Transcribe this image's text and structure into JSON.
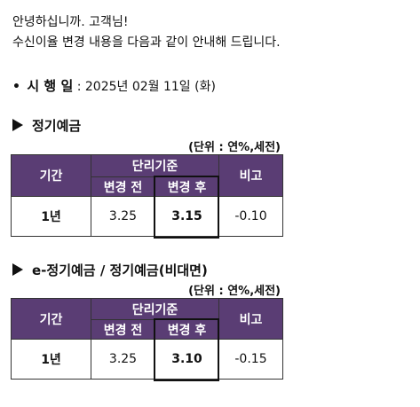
{
  "greeting": {
    "line1": "안녕하십니까. 고객님!",
    "line2": "수신이율 변경 내용을 다음과 같이 안내해 드립니다."
  },
  "effective": {
    "bullet": "•",
    "label": "시 행 일",
    "separator": " : ",
    "date": "2025년 02월 11일 (화)"
  },
  "sections": [
    {
      "title": "정기예금",
      "unit": "(단위 : 연%,세전)",
      "headers": {
        "period": "기간",
        "base_rate": "단리기준",
        "before": "변경 전",
        "after": "변경 후",
        "note": "비고"
      },
      "row": {
        "period": "1년",
        "before": "3.25",
        "after": "3.15",
        "note": "-0.10"
      }
    },
    {
      "title": "e-정기예금 / 정기예금(비대면)",
      "unit": "(단위 : 연%,세전)",
      "headers": {
        "period": "기간",
        "base_rate": "단리기준",
        "before": "변경 전",
        "after": "변경 후",
        "note": "비고"
      },
      "row": {
        "period": "1년",
        "before": "3.25",
        "after": "3.10",
        "note": "-0.15"
      }
    }
  ],
  "colors": {
    "header_bg": "#5a3d74",
    "header_text": "#ffffff"
  }
}
